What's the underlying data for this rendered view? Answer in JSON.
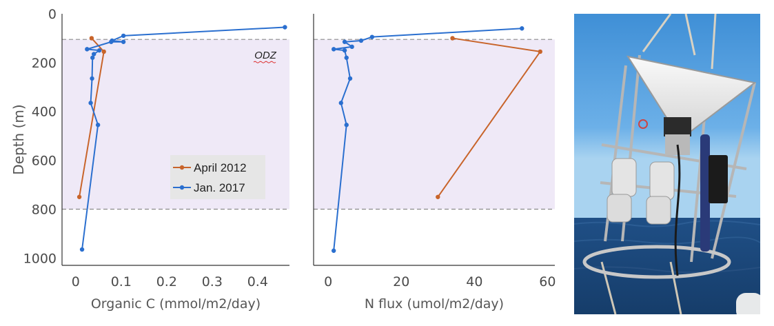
{
  "colors": {
    "april": "#c8642a",
    "jan": "#2a6fcf",
    "odz_fill": "#efe9f7",
    "odz_line": "#8a8a8a"
  },
  "chart_data": [
    {
      "type": "line",
      "xlabel": "Organic C (mmol/m2/day)",
      "ylabel": "Depth (m)",
      "xlim": [
        -0.03,
        0.47
      ],
      "ylim": [
        0,
        1030
      ],
      "y_inverted": true,
      "xticks": [
        0,
        0.1,
        0.2,
        0.3,
        0.4
      ],
      "xtick_labels": [
        "0",
        "0.1",
        "0.2",
        "0.3",
        "0.4"
      ],
      "yticks": [
        0,
        200,
        400,
        600,
        800,
        1000
      ],
      "ytick_labels": [
        "0",
        "200",
        "400",
        "600",
        "800",
        "1000"
      ],
      "odz_band": [
        105,
        800
      ],
      "annotation": "ODZ",
      "legend": "center-right",
      "series": [
        {
          "name": "April 2012",
          "color": "#c8642a",
          "points": [
            [
              0.035,
              100
            ],
            [
              0.062,
              155
            ],
            [
              0.008,
              750
            ]
          ]
        },
        {
          "name": "Jan. 2017",
          "color": "#2a6fcf",
          "points": [
            [
              0.46,
              55
            ],
            [
              0.105,
              90
            ],
            [
              0.08,
              110
            ],
            [
              0.105,
              115
            ],
            [
              0.078,
              115
            ],
            [
              0.025,
              145
            ],
            [
              0.052,
              150
            ],
            [
              0.04,
              165
            ],
            [
              0.037,
              180
            ],
            [
              0.036,
              265
            ],
            [
              0.033,
              365
            ],
            [
              0.049,
              455
            ],
            [
              0.014,
              965
            ]
          ]
        }
      ]
    },
    {
      "type": "line",
      "xlabel": "N flux (umol/m2/day)",
      "ylabel": "",
      "xlim": [
        -4,
        62
      ],
      "ylim": [
        0,
        1030
      ],
      "y_inverted": true,
      "xticks": [
        0,
        20,
        40,
        60
      ],
      "xtick_labels": [
        "0",
        "20",
        "40",
        "60"
      ],
      "odz_band": [
        105,
        800
      ],
      "series": [
        {
          "name": "April 2012",
          "color": "#c8642a",
          "points": [
            [
              34,
              100
            ],
            [
              58,
              155
            ],
            [
              30,
              750
            ]
          ]
        },
        {
          "name": "Jan. 2017",
          "color": "#2a6fcf",
          "points": [
            [
              53,
              60
            ],
            [
              12,
              95
            ],
            [
              9,
              110
            ],
            [
              4.5,
              115
            ],
            [
              6.5,
              135
            ],
            [
              1.5,
              145
            ],
            [
              4.5,
              150
            ],
            [
              5,
              180
            ],
            [
              6,
              265
            ],
            [
              3.5,
              365
            ],
            [
              5,
              455
            ],
            [
              1.5,
              970
            ]
          ]
        }
      ]
    }
  ],
  "photo": {
    "description_icon": "sediment-trap-icon"
  }
}
